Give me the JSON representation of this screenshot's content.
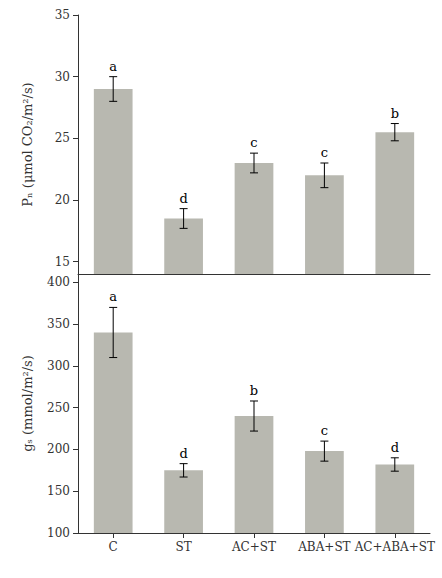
{
  "chart_data": [
    {
      "type": "bar",
      "ylabel": "Pₙ (μmol CO₂/m²/s)",
      "categories": [
        "C",
        "ST",
        "AC+ST",
        "ABA+ST",
        "AC+ABA+ST"
      ],
      "values": [
        29.0,
        18.5,
        23.0,
        22.0,
        25.5
      ],
      "errors": [
        1.0,
        0.8,
        0.8,
        1.0,
        0.7
      ],
      "annotations": [
        "a",
        "d",
        "c",
        "c",
        "b"
      ],
      "color": "#b8b8b0",
      "ylim": [
        14,
        35
      ],
      "yticks": [
        15,
        20,
        25,
        30,
        35
      ],
      "grid": false,
      "tick_labels": "y"
    },
    {
      "type": "bar",
      "ylabel": "gₛ (mmol/m²/s)",
      "categories": [
        "C",
        "ST",
        "AC+ST",
        "ABA+ST",
        "AC+ABA+ST"
      ],
      "values": [
        340,
        175,
        240,
        198,
        182
      ],
      "errors": [
        30,
        8,
        18,
        12,
        8
      ],
      "annotations": [
        "a",
        "d",
        "b",
        "c",
        "d"
      ],
      "color": "#b8b8b0",
      "ylim": [
        100,
        410
      ],
      "yticks": [
        100,
        150,
        200,
        250,
        300,
        350,
        400
      ],
      "grid": false
    }
  ]
}
